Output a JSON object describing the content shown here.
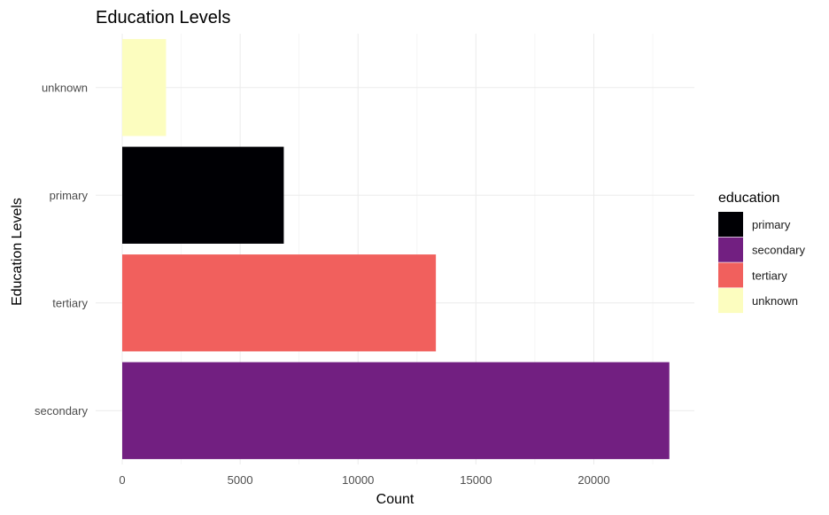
{
  "chart_data": {
    "type": "bar",
    "orientation": "horizontal",
    "title": "Education Levels",
    "xlabel": "Count",
    "ylabel": "Education Levels",
    "categories": [
      "secondary",
      "tertiary",
      "primary",
      "unknown"
    ],
    "values": [
      23202,
      13301,
      6851,
      1857
    ],
    "colors": [
      "#721f81",
      "#f1605d",
      "#000004",
      "#fcfdbf"
    ],
    "xlim": [
      0,
      24300
    ],
    "x_ticks": [
      0,
      5000,
      10000,
      15000,
      20000
    ],
    "x_tick_labels": [
      "0",
      "5000",
      "10000",
      "15000",
      "20000"
    ],
    "grid": true,
    "legend": {
      "title": "education",
      "position": "right",
      "entries": [
        {
          "label": "primary",
          "color": "#000004"
        },
        {
          "label": "secondary",
          "color": "#721f81"
        },
        {
          "label": "tertiary",
          "color": "#f1605d"
        },
        {
          "label": "unknown",
          "color": "#fcfdbf"
        }
      ]
    }
  }
}
